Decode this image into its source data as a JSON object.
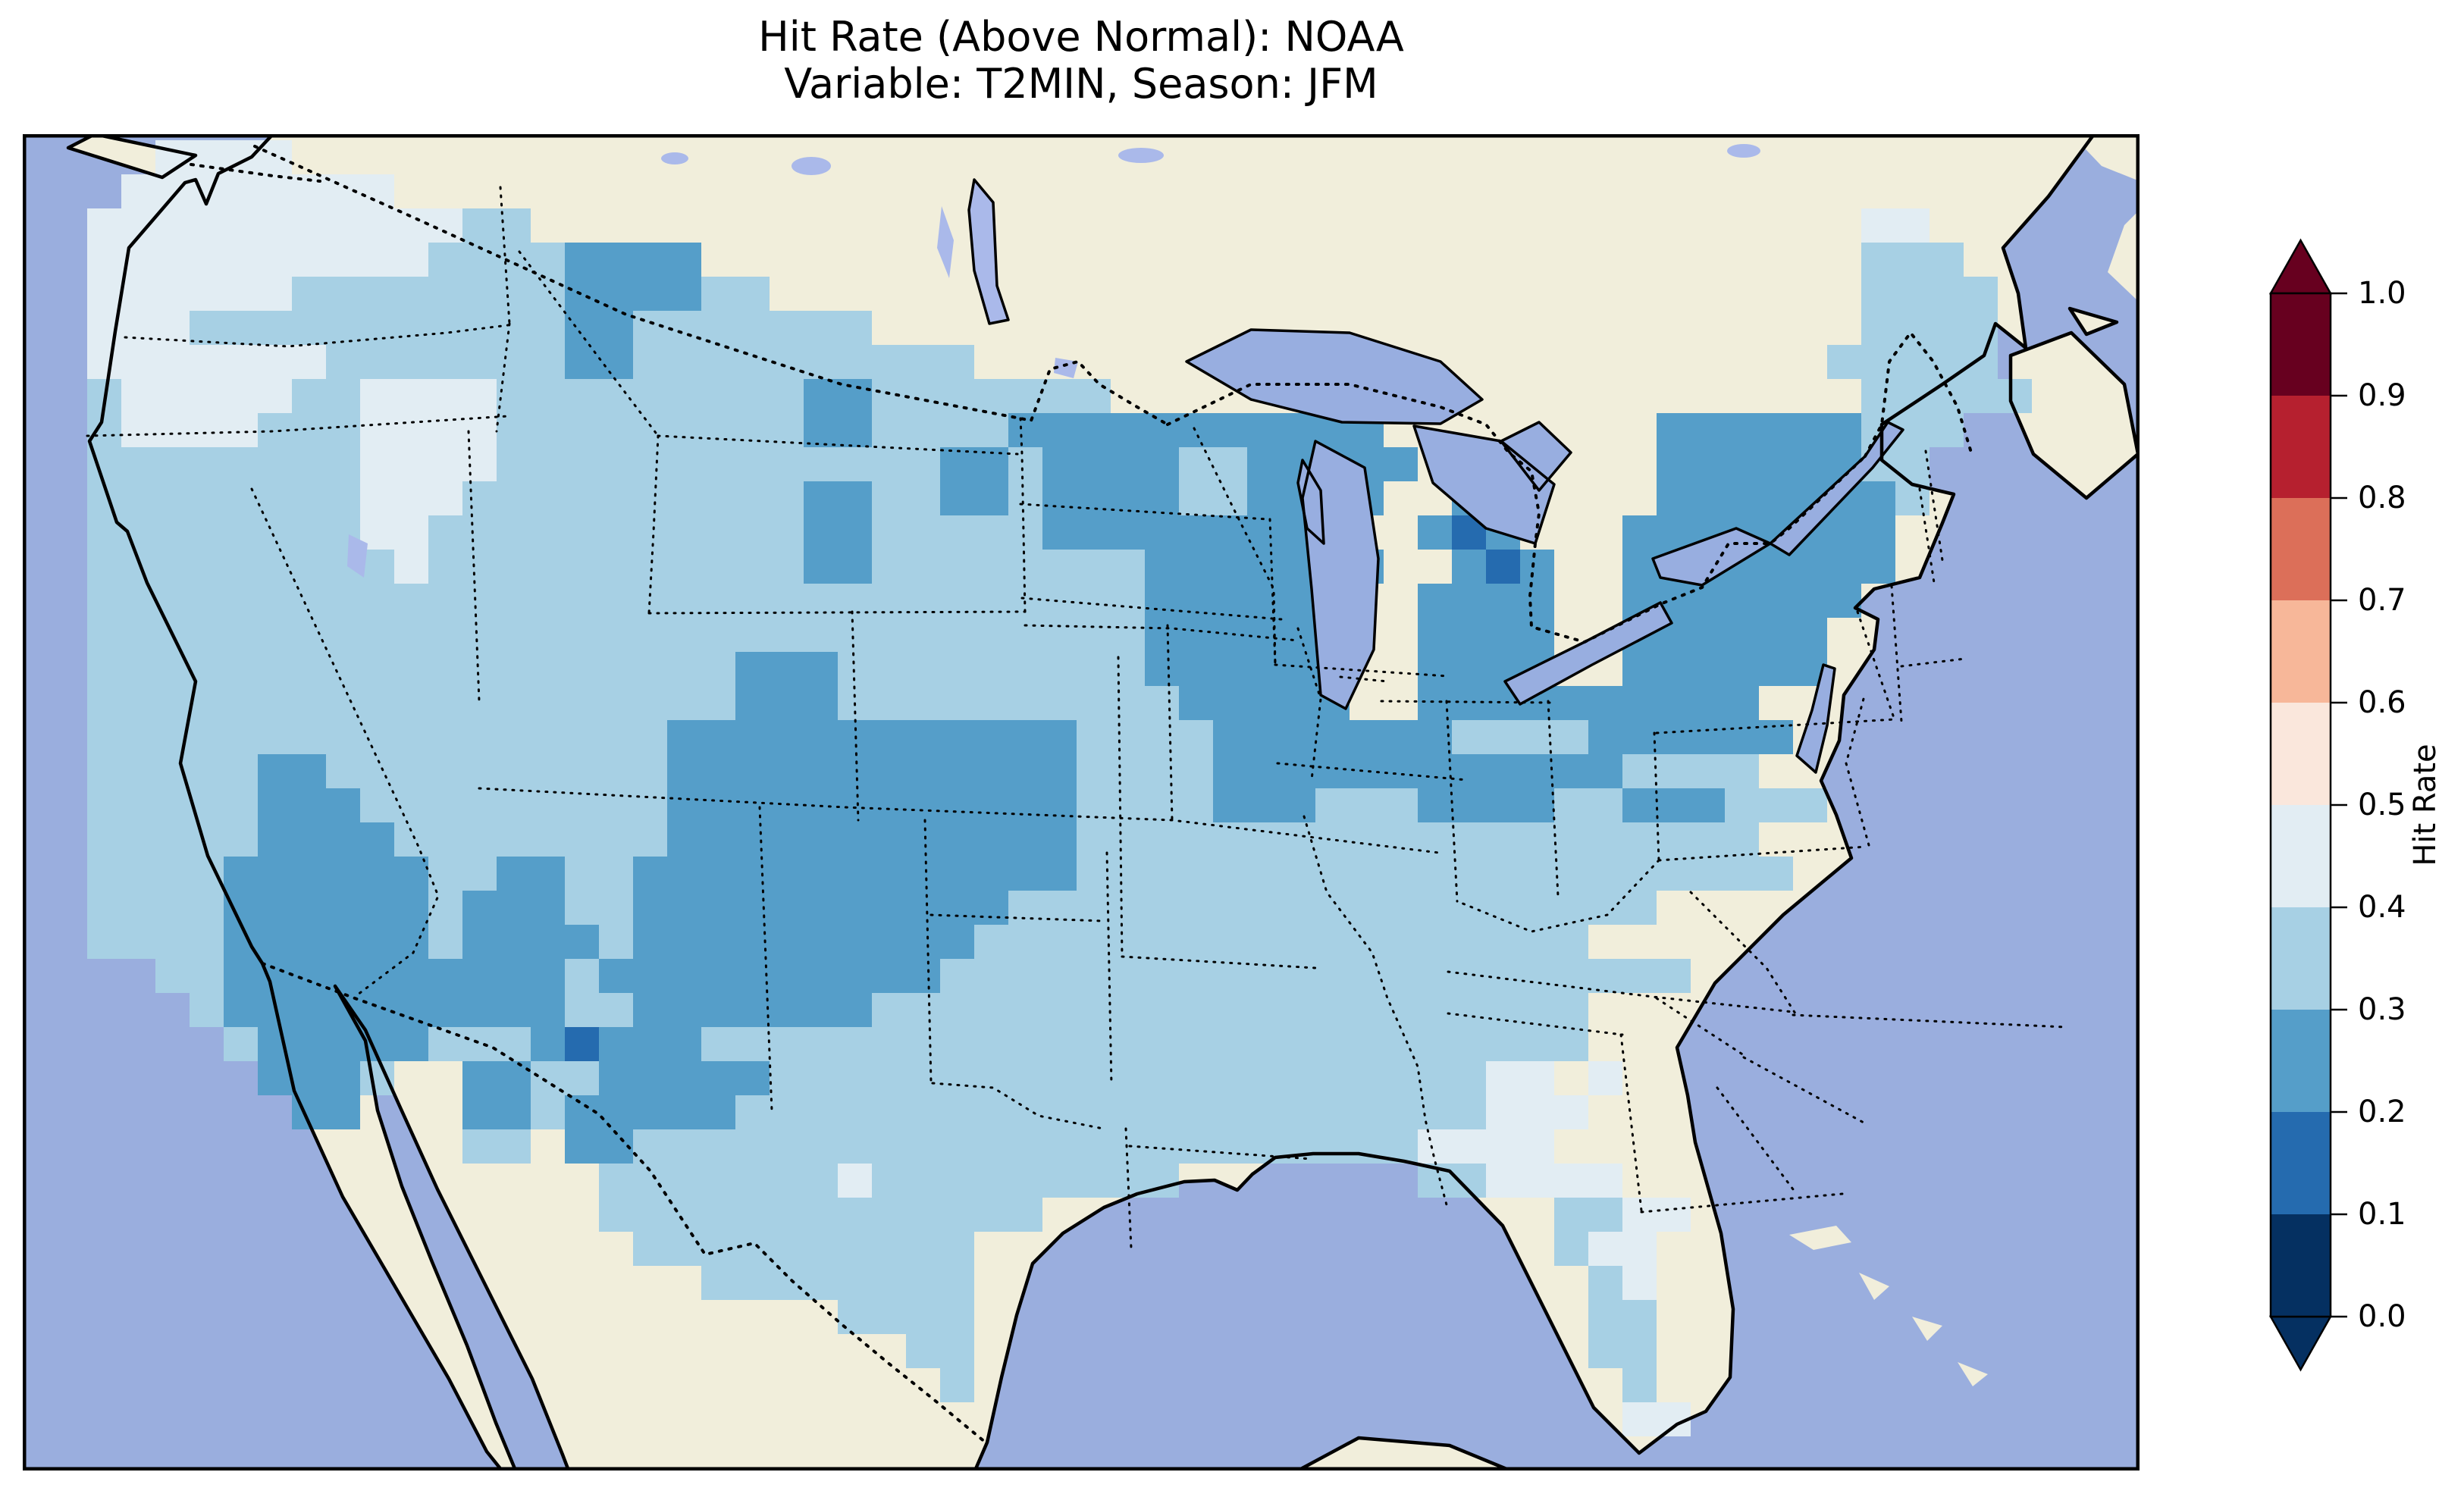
{
  "title": {
    "line1": "Hit Rate (Above Normal): NOAA",
    "line2": "Variable: T2MIN, Season: JFM"
  },
  "colorbar": {
    "label": "Hit Rate",
    "ticks": [
      "1.0",
      "0.9",
      "0.8",
      "0.7",
      "0.6",
      "0.5",
      "0.4",
      "0.3",
      "0.2",
      "0.1",
      "0.0"
    ],
    "under_color": "#053061",
    "over_color": "#67001f"
  },
  "map_colors": {
    "ocean": "#9aaede",
    "land": "#f1eedb",
    "lake": "#98aee0",
    "small_lake": "#aab9ea",
    "coastline": "#000000",
    "frame": "#000000"
  },
  "chart_data": {
    "type": "heatmap",
    "title": "Hit Rate (Above Normal): NOAA — Variable: T2MIN, Season: JFM",
    "colorbar_label": "Hit Rate",
    "value_range": [
      0.0,
      1.0
    ],
    "legend_position": "right",
    "bins": [
      {
        "min": 0.0,
        "max": 0.1,
        "color": "#053061"
      },
      {
        "min": 0.1,
        "max": 0.2,
        "color": "#256baf"
      },
      {
        "min": 0.2,
        "max": 0.3,
        "color": "#559ec9"
      },
      {
        "min": 0.3,
        "max": 0.4,
        "color": "#a7d0e4"
      },
      {
        "min": 0.4,
        "max": 0.5,
        "color": "#e2edf3"
      },
      {
        "min": 0.5,
        "max": 0.6,
        "color": "#fae7dc"
      },
      {
        "min": 0.6,
        "max": 0.7,
        "color": "#f7b799"
      },
      {
        "min": 0.7,
        "max": 0.8,
        "color": "#dc6f59"
      },
      {
        "min": 0.8,
        "max": 0.9,
        "color": "#b6202f"
      },
      {
        "min": 0.9,
        "max": 1.0,
        "color": "#67001f"
      }
    ],
    "grid": {
      "origin": [
        85,
        8
      ],
      "cell": 45,
      "legend": "rows of cells over CONUS; digit = bin index (value range = digit/10 .. digit/10+0.1), '.' = no data",
      "rows": [
        "..4444..................................................",
        ".44444444...............................................",
        "4444444444433.......................................44..",
        "444444444433332222..................................333.",
        "44444433333333222233................................3333.",
        "44433333333333223333333.............................3333.",
        "44444443333333223333333333.........................33333.",
        "344444334444333333333223333333......................33333.",
        "34444333444433333333322333322222222222........222222333.",
        "333333334444333333333333322322223322222.......22222233..",
        "33333333444333333333322332232222332222..22....22222223...",
        "3333333344333333333332233333222222222..212...22222222...",
        "33333333343333333333322333333332222222..212..22222222...",
        "3333333333333333333333333333333222222..2222..2222222....",
        "3333333333333333333333333333333222222..2222..222222.....",
        "3333333333333333333222333333333222222..2222..222222.....",
        "3333333333333333333222333333333322222..2222222222.......",
        "33333333333333333222222222222333322222223333222222......",
        "3333322333333333322222222222233332222222222223333.......",
        "333332223333333332222222222223333222333222233222333.....",
        "3333322223333333322222222222233333333333333333333......",
        "33332222223322332222222222222333333333333333333333......",
        "3333222222322233222222222223333333333333333333..........",
        "33332222223222232222222222333333333333333333...........",
        "..332222222222322222222223333333333333333333333.........",
        "...32222222222332222222333333333333333333333............",
        "....3222223332122233333333333333333333333333.............",
        ".....2223..22332222233333333333333333333344 4..........",
        "......22...223222223333333333333333333333444.........",
        "...........33.22333333333333333333333334444.........",
        "...............33333334333333333.......334444.........",
        "...............3333333333333...............3344..........",
        "................3333333333.................344..........",
        "..................33333333..................34..........",
        "......................3333..................33..........",
        "........................33..................33..........",
        ".........................3...................3..........",
        ".............................................44.........",
        "........................................................"
      ]
    }
  }
}
